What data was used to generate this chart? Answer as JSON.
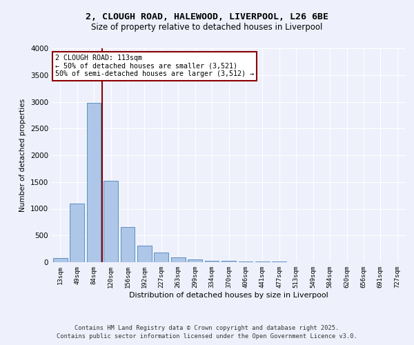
{
  "title_line1": "2, CLOUGH ROAD, HALEWOOD, LIVERPOOL, L26 6BE",
  "title_line2": "Size of property relative to detached houses in Liverpool",
  "xlabel": "Distribution of detached houses by size in Liverpool",
  "ylabel": "Number of detached properties",
  "categories": [
    "13sqm",
    "49sqm",
    "84sqm",
    "120sqm",
    "156sqm",
    "192sqm",
    "227sqm",
    "263sqm",
    "299sqm",
    "334sqm",
    "370sqm",
    "406sqm",
    "441sqm",
    "477sqm",
    "513sqm",
    "549sqm",
    "584sqm",
    "620sqm",
    "656sqm",
    "691sqm",
    "727sqm"
  ],
  "values": [
    75,
    1100,
    2980,
    1520,
    660,
    310,
    175,
    90,
    50,
    30,
    20,
    15,
    10,
    8,
    6,
    5,
    4,
    3,
    2,
    2,
    1
  ],
  "bar_color": "#aec6e8",
  "bar_edgecolor": "#5a8fc0",
  "property_bin_index": 3,
  "annotation_line1": "2 CLOUGH ROAD: 113sqm",
  "annotation_line2": "← 50% of detached houses are smaller (3,521)",
  "annotation_line3": "50% of semi-detached houses are larger (3,512) →",
  "vline_color": "#8b0000",
  "annotation_box_color": "#8b0000",
  "ylim": [
    0,
    4000
  ],
  "yticks": [
    0,
    500,
    1000,
    1500,
    2000,
    2500,
    3000,
    3500,
    4000
  ],
  "footnote_line1": "Contains HM Land Registry data © Crown copyright and database right 2025.",
  "footnote_line2": "Contains public sector information licensed under the Open Government Licence v3.0.",
  "bg_color": "#eef1fb",
  "grid_color": "#ffffff"
}
